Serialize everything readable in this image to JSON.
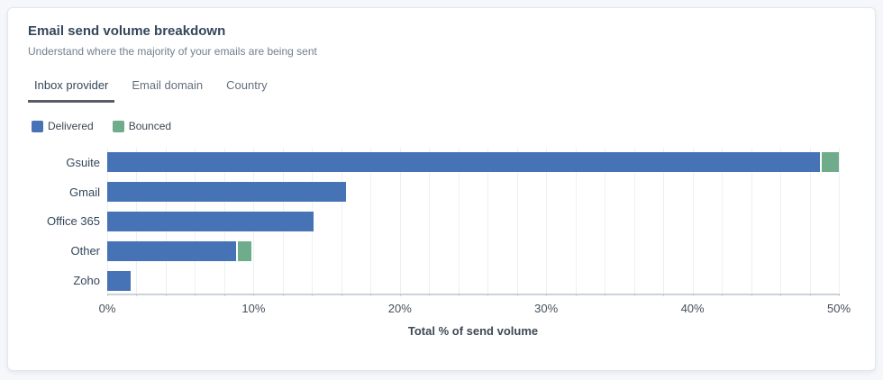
{
  "card": {
    "title": "Email send volume breakdown",
    "subtitle": "Understand where the majority of your emails are being sent"
  },
  "tabs": [
    {
      "id": "inbox-provider",
      "label": "Inbox provider",
      "active": true
    },
    {
      "id": "email-domain",
      "label": "Email domain",
      "active": false
    },
    {
      "id": "country",
      "label": "Country",
      "active": false
    }
  ],
  "legend": [
    {
      "label": "Delivered",
      "color": "#4573b5"
    },
    {
      "label": "Bounced",
      "color": "#6fac8b"
    }
  ],
  "colors": {
    "delivered": "#4573b5",
    "bounced": "#6fac8b",
    "gridline": "#edf0f3",
    "axis_line": "#ccd2d9"
  },
  "chart_data": {
    "type": "bar",
    "orientation": "horizontal",
    "stacked": true,
    "categories": [
      "Gsuite",
      "Gmail",
      "Office 365",
      "Other",
      "Zoho"
    ],
    "series": [
      {
        "name": "Delivered",
        "color": "#4573b5",
        "values": [
          49.0,
          16.3,
          14.1,
          8.8,
          1.6
        ]
      },
      {
        "name": "Bounced",
        "color": "#6fac8b",
        "values": [
          1.2,
          0,
          0,
          0.9,
          0
        ]
      }
    ],
    "xlabel": "Total % of send volume",
    "ylabel": "",
    "xlim": [
      0,
      50
    ],
    "x_tick_labels": [
      "0%",
      "10%",
      "20%",
      "30%",
      "40%",
      "50%"
    ],
    "x_tick_values": [
      0,
      10,
      20,
      30,
      40,
      50
    ],
    "gridline_step": 2,
    "grid": true,
    "legend_position": "top-left"
  }
}
